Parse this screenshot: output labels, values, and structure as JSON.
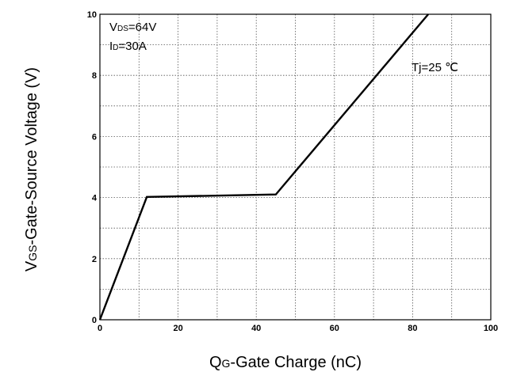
{
  "chart_data": {
    "type": "line",
    "title": "",
    "xlabel": {
      "main": "Q",
      "sub": "G",
      "rest": "-Gate Charge (nC)"
    },
    "ylabel": {
      "main": "V",
      "sub": "GS",
      "rest": "-Gate-Source Voltage (V)"
    },
    "xlim": [
      0,
      100
    ],
    "ylim": [
      0,
      10
    ],
    "x_ticks": [
      "0",
      "20",
      "40",
      "60",
      "80",
      "100"
    ],
    "y_ticks": [
      "0",
      "2",
      "4",
      "6",
      "8",
      "10"
    ],
    "grid": "dotted",
    "series": [
      {
        "x": [
          0,
          12,
          45,
          84
        ],
        "y": [
          0,
          4.02,
          4.1,
          10
        ]
      }
    ],
    "annotations": {
      "vds": {
        "main": "V",
        "sub": "DS",
        "rest": "=64V"
      },
      "id": {
        "main": "I",
        "sub": "D",
        "rest": "=30A"
      },
      "tj": "Tj=25 ℃"
    }
  }
}
